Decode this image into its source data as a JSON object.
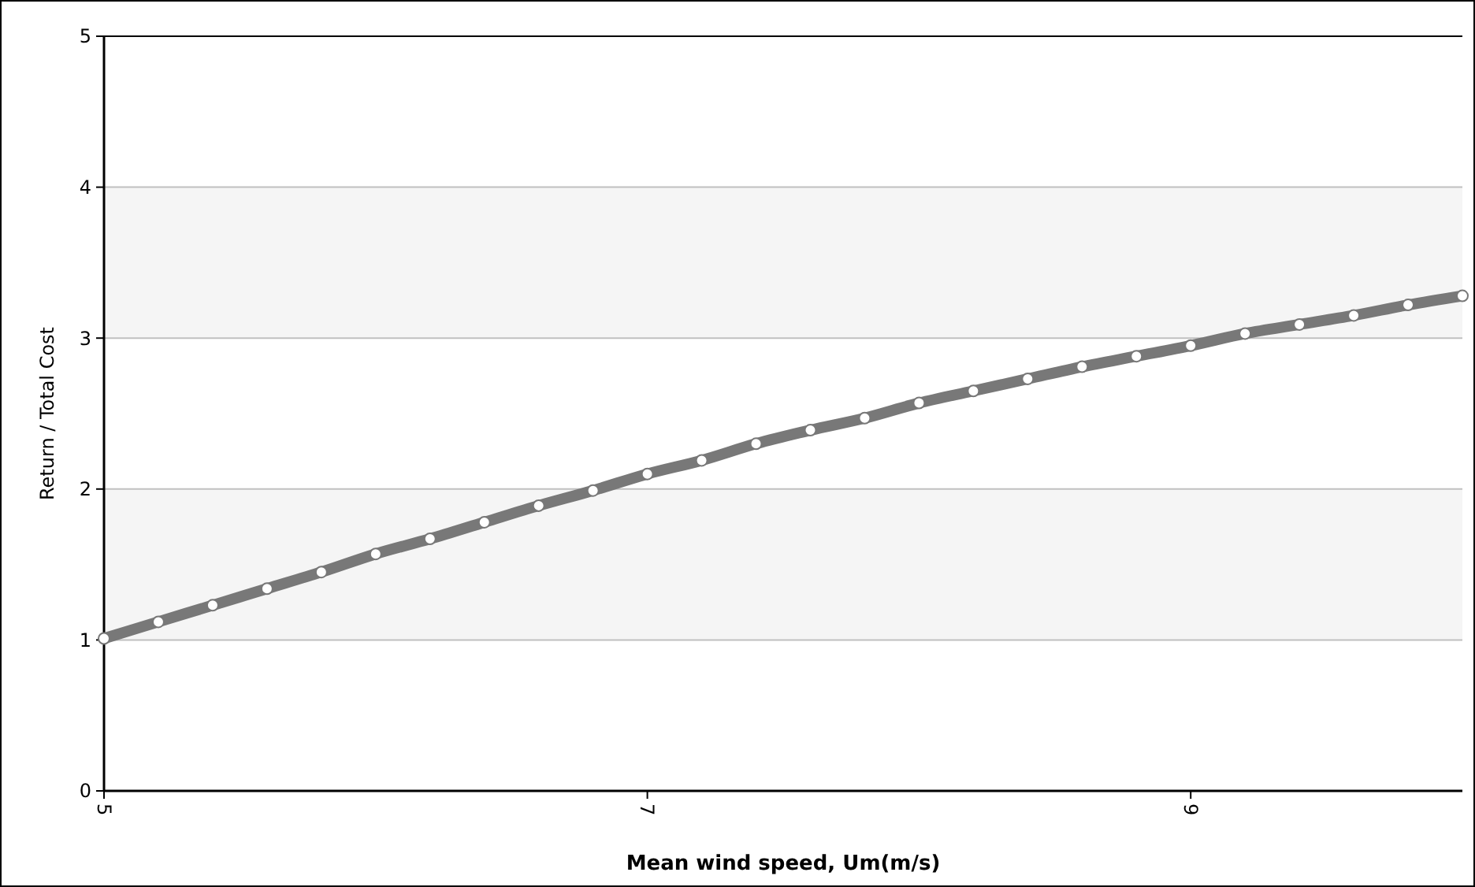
{
  "chart_data": {
    "type": "line",
    "xlabel": "Mean wind speed, Um(m/s)",
    "ylabel": "Return / Total Cost",
    "x": [
      5,
      5.2,
      5.4,
      5.6,
      5.8,
      6,
      6.2,
      6.4,
      6.6,
      6.8,
      7,
      7.2,
      7.4,
      7.6,
      7.8,
      8,
      8.2,
      8.4,
      8.6,
      8.8,
      9,
      9.2,
      9.4,
      9.6,
      9.8,
      10
    ],
    "series": [
      {
        "color": "#787878",
        "values": [
          1.01,
          1.12,
          1.23,
          1.34,
          1.45,
          1.57,
          1.67,
          1.78,
          1.89,
          1.99,
          2.1,
          2.19,
          2.3,
          2.39,
          2.47,
          2.57,
          2.65,
          2.73,
          2.81,
          2.88,
          2.95,
          3.03,
          3.09,
          3.15,
          3.22,
          3.28
        ]
      }
    ],
    "xlim": [
      5,
      10
    ],
    "xticks": [
      5,
      7,
      9
    ],
    "ylim": [
      0,
      5
    ],
    "yticks": [
      0,
      1,
      2,
      3,
      4,
      5
    ],
    "bands": [
      {
        "axis": "y",
        "from": 1,
        "to": 2,
        "color": "#f5f5f5"
      },
      {
        "axis": "y",
        "from": 3,
        "to": 4,
        "color": "#f5f5f5"
      }
    ],
    "grid": "y",
    "marker": "circle",
    "line_style": "solid"
  }
}
